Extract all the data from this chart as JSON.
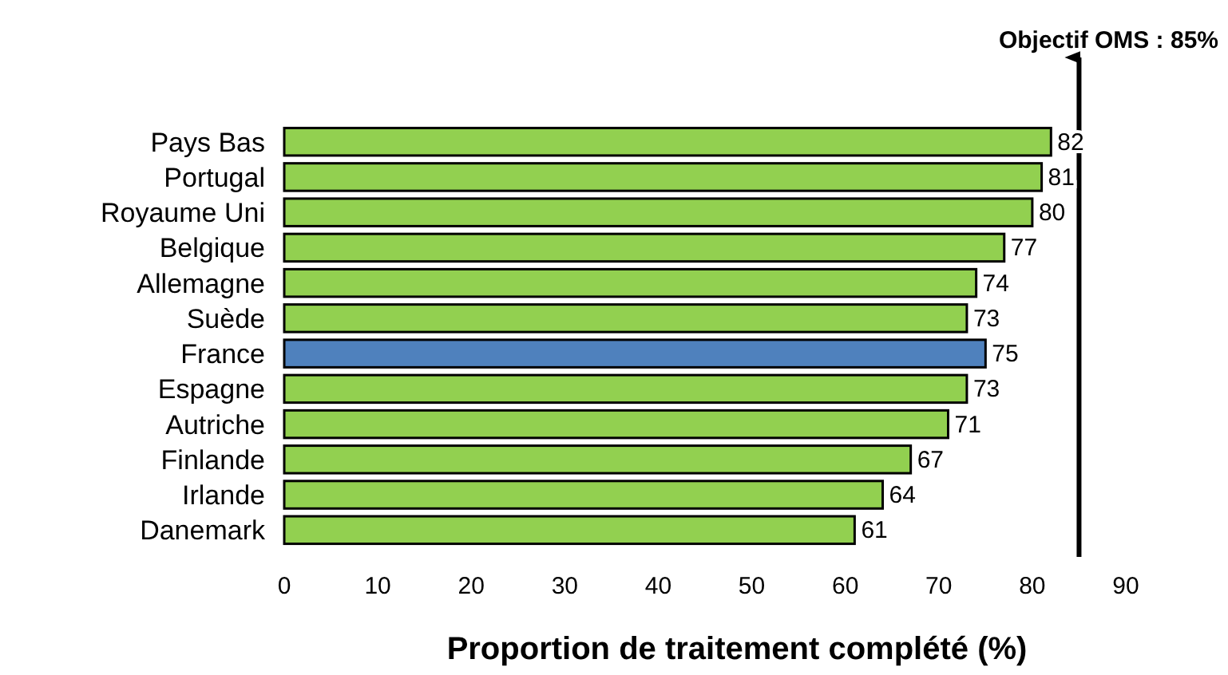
{
  "chart_data": {
    "type": "bar",
    "orientation": "horizontal",
    "xlabel": "Proportion de traitement complété (%)",
    "categories": [
      "Pays Bas",
      "Portugal",
      "Royaume Uni",
      "Belgique",
      "Allemagne",
      "Suède",
      "France",
      "Espagne",
      "Autriche",
      "Finlande",
      "Irlande",
      "Danemark"
    ],
    "values": [
      82,
      81,
      80,
      77,
      74,
      73,
      75,
      73,
      71,
      67,
      64,
      61
    ],
    "colors": [
      "#92d050",
      "#92d050",
      "#92d050",
      "#92d050",
      "#92d050",
      "#92d050",
      "#4f81bd",
      "#92d050",
      "#92d050",
      "#92d050",
      "#92d050",
      "#92d050"
    ],
    "xlim": [
      0,
      90
    ],
    "xticks": [
      0,
      10,
      20,
      30,
      40,
      50,
      60,
      70,
      80,
      90
    ],
    "grid": false,
    "data_labels": true,
    "ref_lines": [
      {
        "axis": "x",
        "value": 85,
        "label": "Objectif OMS : 85%",
        "color": "#000000"
      }
    ]
  }
}
